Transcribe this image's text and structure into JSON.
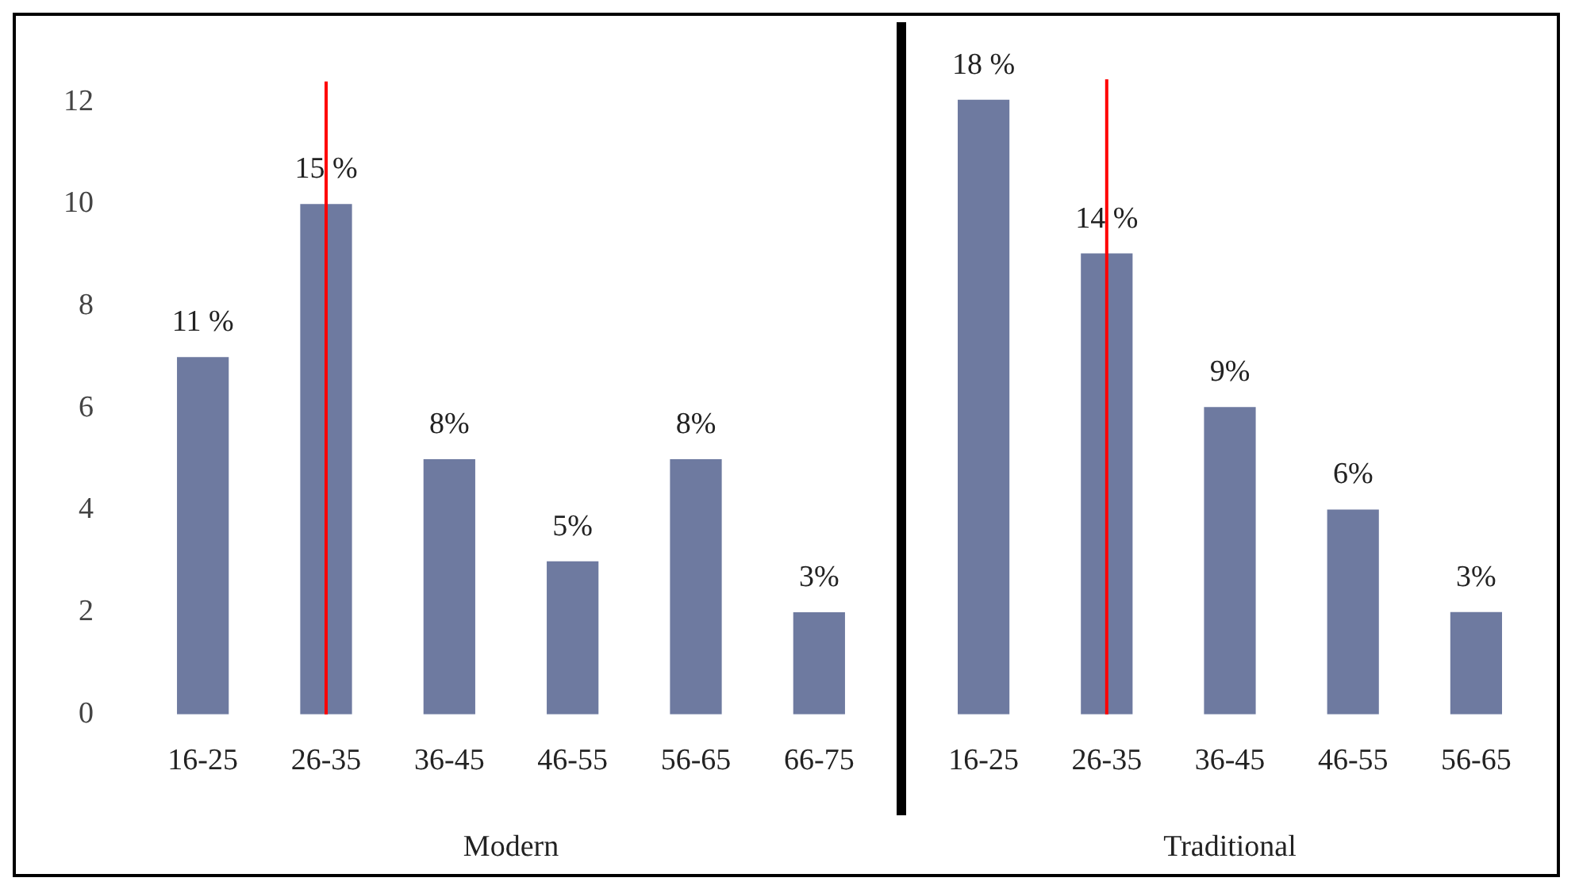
{
  "chart_data": [
    {
      "type": "bar",
      "xlabel": "Modern",
      "categories": [
        "16-25",
        "26-35",
        "36-45",
        "46-55",
        "56-65",
        "66-75"
      ],
      "values": [
        7,
        10,
        5,
        3,
        5,
        2
      ],
      "color": "#6e7aa0",
      "ylim": [
        0,
        12.4
      ],
      "yticks": [
        0,
        2,
        4,
        6,
        8,
        10,
        12
      ],
      "grid": false,
      "legend": false,
      "annotations": [
        {
          "text": "11 %",
          "x": "16-25",
          "y": 7
        },
        {
          "text": "15 %",
          "x": "26-35",
          "y": 10
        },
        {
          "text": "8%",
          "x": "36-45",
          "y": 5
        },
        {
          "text": "5%",
          "x": "46-55",
          "y": 3
        },
        {
          "text": "8%",
          "x": "56-65",
          "y": 5
        },
        {
          "text": "3%",
          "x": "66-75",
          "y": 2
        }
      ],
      "ref_lines": [
        {
          "axis": "x",
          "value": "26-35",
          "color": "#ff0000"
        }
      ]
    },
    {
      "type": "bar",
      "xlabel": "Traditional",
      "categories": [
        "16-25",
        "26-35",
        "36-45",
        "46-55",
        "56-65"
      ],
      "values": [
        12,
        9,
        6,
        4,
        2
      ],
      "color": "#6e7aa0",
      "ylim": [
        0,
        12.4
      ],
      "yticks": [
        0,
        2,
        4,
        6,
        8,
        10,
        12
      ],
      "grid": false,
      "legend": false,
      "tick_labels": "x",
      "annotations": [
        {
          "text": "18 %",
          "x": "16-25",
          "y": 12
        },
        {
          "text": "14 %",
          "x": "26-35",
          "y": 9
        },
        {
          "text": "9%",
          "x": "36-45",
          "y": 6
        },
        {
          "text": "6%",
          "x": "46-55",
          "y": 4
        },
        {
          "text": "3%",
          "x": "56-65",
          "y": 2
        }
      ],
      "ref_lines": [
        {
          "axis": "x",
          "value": "26-35",
          "color": "#ff0000"
        }
      ]
    }
  ]
}
